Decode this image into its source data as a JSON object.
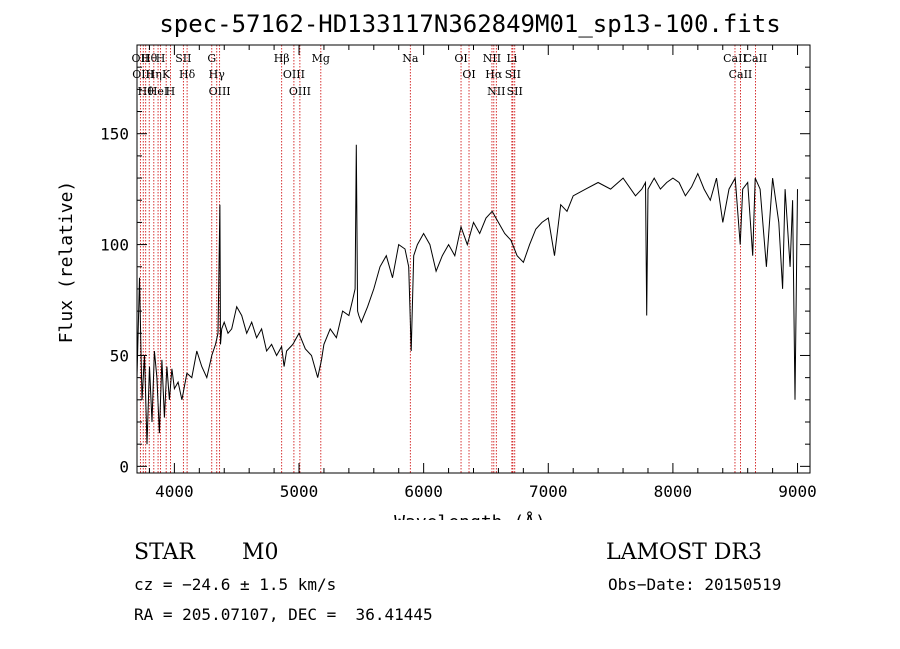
{
  "chart_data": {
    "type": "line",
    "title": "spec-57162-HD133117N362849M01_sp13-100.fits",
    "xlabel": "Wavelength (Å)",
    "ylabel": "Flux (relative)",
    "xlim": [
      3700,
      9100
    ],
    "ylim": [
      -3,
      190
    ],
    "xticks": [
      4000,
      5000,
      6000,
      7000,
      8000,
      9000
    ],
    "yticks": [
      0,
      50,
      100,
      150
    ],
    "grid": false,
    "series": [
      {
        "x": [
          3700,
          3720,
          3740,
          3760,
          3780,
          3800,
          3820,
          3840,
          3860,
          3880,
          3900,
          3920,
          3940,
          3960,
          3980,
          4000,
          4030,
          4060,
          4100,
          4140,
          4180,
          4220,
          4260,
          4300,
          4330,
          4350,
          4365,
          4370,
          4380,
          4400,
          4430,
          4460,
          4500,
          4540,
          4580,
          4620,
          4660,
          4700,
          4740,
          4780,
          4820,
          4860,
          4880,
          4900,
          4950,
          5000,
          5050,
          5100,
          5150,
          5180,
          5200,
          5250,
          5300,
          5350,
          5400,
          5430,
          5450,
          5460,
          5470,
          5480,
          5500,
          5550,
          5600,
          5650,
          5700,
          5750,
          5800,
          5850,
          5880,
          5900,
          5920,
          5950,
          6000,
          6050,
          6100,
          6150,
          6200,
          6250,
          6300,
          6350,
          6400,
          6450,
          6500,
          6550,
          6580,
          6600,
          6650,
          6700,
          6750,
          6800,
          6850,
          6900,
          6950,
          7000,
          7050,
          7100,
          7150,
          7200,
          7300,
          7400,
          7500,
          7600,
          7700,
          7750,
          7780,
          7790,
          7800,
          7850,
          7900,
          7950,
          8000,
          8050,
          8100,
          8150,
          8200,
          8250,
          8300,
          8350,
          8400,
          8450,
          8500,
          8540,
          8560,
          8600,
          8640,
          8660,
          8700,
          8750,
          8800,
          8850,
          8880,
          8900,
          8940,
          8960,
          8980,
          9000
        ],
        "y": [
          40,
          85,
          30,
          50,
          10,
          45,
          20,
          52,
          40,
          15,
          48,
          22,
          45,
          30,
          44,
          35,
          38,
          30,
          42,
          40,
          52,
          45,
          40,
          50,
          55,
          60,
          118,
          55,
          62,
          65,
          60,
          62,
          72,
          68,
          60,
          65,
          58,
          62,
          52,
          55,
          50,
          54,
          45,
          52,
          55,
          60,
          53,
          50,
          40,
          48,
          55,
          62,
          58,
          70,
          68,
          75,
          80,
          145,
          70,
          68,
          65,
          72,
          80,
          90,
          95,
          85,
          100,
          98,
          90,
          52,
          95,
          100,
          105,
          100,
          88,
          95,
          100,
          95,
          108,
          100,
          110,
          105,
          112,
          115,
          112,
          110,
          105,
          102,
          95,
          92,
          100,
          107,
          110,
          112,
          95,
          118,
          115,
          122,
          125,
          128,
          125,
          130,
          122,
          125,
          128,
          68,
          125,
          130,
          125,
          128,
          130,
          128,
          122,
          126,
          132,
          125,
          120,
          130,
          110,
          125,
          130,
          100,
          125,
          128,
          95,
          130,
          125,
          90,
          130,
          110,
          80,
          125,
          90,
          120,
          30,
          125
        ]
      }
    ],
    "spectral_lines": [
      {
        "wl": 3727,
        "label": "OII"
      },
      {
        "wl": 3750,
        "label": "OIII"
      },
      {
        "wl": 3770,
        "label": "Hθ"
      },
      {
        "wl": 3798,
        "label": "Hθ"
      },
      {
        "wl": 3835,
        "label": "Hη"
      },
      {
        "wl": 3869,
        "label": "HeI"
      },
      {
        "wl": 3889,
        "label": "H"
      },
      {
        "wl": 3934,
        "label": "K"
      },
      {
        "wl": 3968,
        "label": "H"
      },
      {
        "wl": 4072,
        "label": "SII"
      },
      {
        "wl": 4102,
        "label": "Hδ"
      },
      {
        "wl": 4300,
        "label": "G"
      },
      {
        "wl": 4340,
        "label": "Hγ"
      },
      {
        "wl": 4363,
        "label": "OIII"
      },
      {
        "wl": 4861,
        "label": "Hβ"
      },
      {
        "wl": 4959,
        "label": "OIII"
      },
      {
        "wl": 5007,
        "label": "OIII"
      },
      {
        "wl": 5175,
        "label": "Mg"
      },
      {
        "wl": 5893,
        "label": "Na"
      },
      {
        "wl": 6300,
        "label": "OI"
      },
      {
        "wl": 6364,
        "label": "OI"
      },
      {
        "wl": 6548,
        "label": "NII"
      },
      {
        "wl": 6563,
        "label": "Hα"
      },
      {
        "wl": 6583,
        "label": "NII"
      },
      {
        "wl": 6708,
        "label": "Li"
      },
      {
        "wl": 6716,
        "label": "SII"
      },
      {
        "wl": 6731,
        "label": "SII"
      },
      {
        "wl": 8498,
        "label": "CaII"
      },
      {
        "wl": 8542,
        "label": "CaII"
      },
      {
        "wl": 8662,
        "label": "CaII"
      }
    ],
    "line_color": "#cc0000",
    "spectrum_color": "#000000"
  },
  "info": {
    "object_type": "STAR",
    "subclass": "M0",
    "survey": "LAMOST DR3",
    "cz": "cz = −24.6 ± 1.5 km/s",
    "obs_date": "Obs−Date: 20150519",
    "coords": "RA = 205.07107, DEC =  36.41445"
  }
}
